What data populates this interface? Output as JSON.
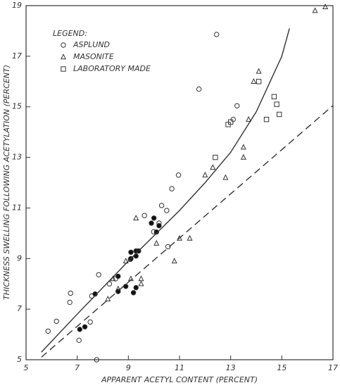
{
  "chart_data": {
    "type": "scatter",
    "xlabel": "APPARENT ACETYL CONTENT (PERCENT)",
    "ylabel": "THICKNESS SWELLING FOLLOWING ACETYLATION (PERCENT)",
    "legend_title": "LEGEND:",
    "legend": "upper left",
    "xlim": [
      5,
      17
    ],
    "xticks": [
      5,
      7,
      9,
      11,
      13,
      15,
      17
    ],
    "ylim": [
      5,
      19
    ],
    "yticks": [
      5,
      7,
      9,
      11,
      13,
      15,
      17,
      19
    ],
    "color": "#333333",
    "series": [
      {
        "name": "ASPLUND",
        "marker": "circle-open",
        "x": [
          5.86,
          6.19,
          6.74,
          6.71,
          7.07,
          7.57,
          7.76,
          7.51,
          7.84,
          8.26,
          8.5,
          9.08,
          9.63,
          9.99,
          10.2,
          10.3,
          10.5,
          10.7,
          10.96,
          11.76,
          12.45,
          13.25,
          13.1,
          10.55
        ],
        "values": [
          6.13,
          6.52,
          7.63,
          7.27,
          5.77,
          7.52,
          5.0,
          6.49,
          8.36,
          8.0,
          8.2,
          8.97,
          10.7,
          10.06,
          10.4,
          11.1,
          10.9,
          11.76,
          12.3,
          15.7,
          17.86,
          15.04,
          14.5,
          9.47
        ]
      },
      {
        "name": "MASONITE",
        "marker": "triangle-open",
        "x": [
          8.2,
          8.4,
          8.6,
          9.1,
          9.5,
          9.5,
          9.3,
          10.1,
          10.8,
          11.0,
          11.4,
          12.0,
          12.3,
          12.8,
          13.5,
          13.5,
          13.7,
          13.9,
          14.1,
          16.3,
          16.7,
          8.9
        ],
        "values": [
          7.4,
          8.2,
          7.8,
          8.2,
          8.2,
          8.0,
          10.6,
          9.6,
          8.9,
          9.8,
          9.8,
          12.3,
          12.6,
          12.2,
          13.0,
          13.4,
          14.5,
          16.0,
          16.4,
          18.8,
          18.95,
          8.9
        ]
      },
      {
        "name": "LABORATORY MADE",
        "marker": "square-open",
        "x": [
          12.9,
          12.4,
          14.1,
          14.4,
          14.7,
          14.8,
          14.9,
          13.0
        ],
        "values": [
          14.3,
          13.0,
          16.0,
          14.5,
          15.4,
          15.1,
          14.7,
          14.4
        ]
      },
      {
        "marker": "circle-filled",
        "x": [
          7.1,
          7.3,
          7.7,
          8.6,
          8.6,
          9.1,
          9.1,
          9.3,
          9.4,
          9.2,
          9.3,
          9.9,
          10.0,
          10.1,
          10.2,
          8.9,
          9.3
        ],
        "values": [
          6.2,
          6.3,
          7.6,
          8.3,
          7.7,
          9.0,
          9.25,
          9.3,
          9.3,
          7.65,
          7.85,
          10.4,
          10.6,
          10.05,
          10.3,
          7.9,
          9.1
        ]
      }
    ],
    "curves": [
      {
        "style": "solid",
        "x": [
          5.6,
          7,
          9,
          11,
          12,
          13,
          14,
          15,
          15.3
        ],
        "values": [
          5.3,
          6.8,
          8.9,
          10.9,
          12.0,
          13.2,
          14.8,
          17.0,
          18.1
        ]
      },
      {
        "style": "dashed",
        "x": [
          5.6,
          17
        ],
        "values": [
          5.1,
          15.05
        ]
      }
    ]
  }
}
